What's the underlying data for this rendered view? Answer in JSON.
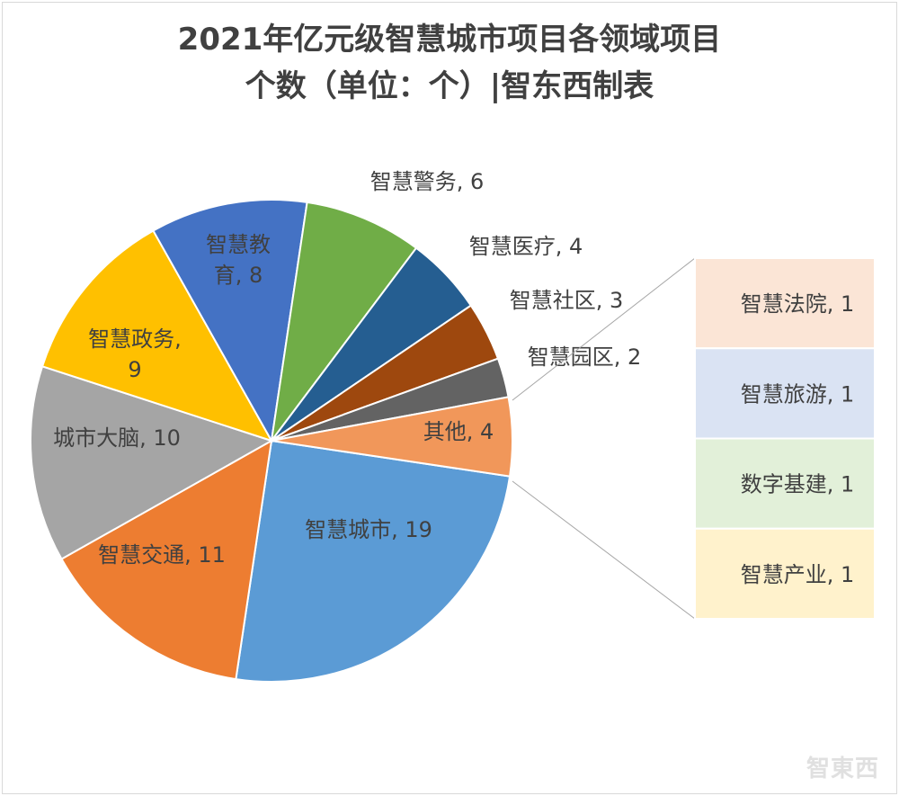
{
  "chart_data": {
    "type": "pie",
    "subtype": "bar-of-pie",
    "title_line1": "2021年亿元级智慧城市项目各领域项目",
    "title_line2": "个数（单位：个）|智东西制表",
    "unit": "个",
    "slices": [
      {
        "name": "智慧城市",
        "value": 19,
        "color": "#5B9BD5",
        "label": "智慧城市, 19"
      },
      {
        "name": "智慧交通",
        "value": 11,
        "color": "#ED7D31",
        "label": "智慧交通, 11"
      },
      {
        "name": "城市大脑",
        "value": 10,
        "color": "#A5A5A5",
        "label": "城市大脑, 10"
      },
      {
        "name": "智慧政务",
        "value": 9,
        "color": "#FFC000",
        "label": "智慧政务,|9"
      },
      {
        "name": "智慧教育",
        "value": 8,
        "color": "#4472C4",
        "label": "智慧教|育, 8"
      },
      {
        "name": "智慧警务",
        "value": 6,
        "color": "#70AD47",
        "label": "智慧警务, 6"
      },
      {
        "name": "智慧医疗",
        "value": 4,
        "color": "#255E91",
        "label": "智慧医疗, 4"
      },
      {
        "name": "智慧社区",
        "value": 3,
        "color": "#9E480E",
        "label": "智慧社区, 3"
      },
      {
        "name": "智慧园区",
        "value": 2,
        "color": "#636363",
        "label": "智慧园区, 2"
      },
      {
        "name": "其他",
        "value": 4,
        "color": "#F1975A",
        "label": "其他, 4"
      }
    ],
    "other_breakdown": [
      {
        "name": "智慧法院",
        "value": 1,
        "color": "#FBE5D6",
        "label": "智慧法院, 1"
      },
      {
        "name": "智慧旅游",
        "value": 1,
        "color": "#DAE3F3",
        "label": "智慧旅游, 1"
      },
      {
        "name": "数字基建",
        "value": 1,
        "color": "#E2F0D9",
        "label": "数字基建, 1"
      },
      {
        "name": "智慧产业",
        "value": 1,
        "color": "#FFF2CC",
        "label": "智慧产业, 1"
      }
    ]
  },
  "logo_text": "智東西"
}
